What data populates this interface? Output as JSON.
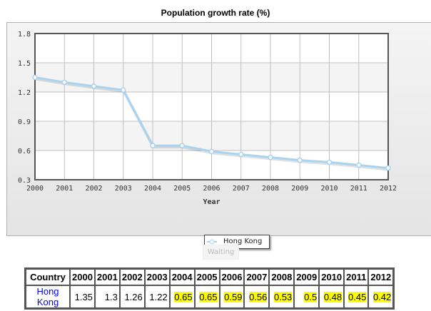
{
  "chart_data": {
    "type": "line",
    "title": "Population growth rate (%)",
    "xlabel": "Year",
    "ylabel": "",
    "categories": [
      "2000",
      "2001",
      "2002",
      "2003",
      "2004",
      "2005",
      "2006",
      "2007",
      "2008",
      "2009",
      "2010",
      "2011",
      "2012"
    ],
    "series": [
      {
        "name": "Hong Kong",
        "values": [
          1.35,
          1.3,
          1.26,
          1.22,
          0.65,
          0.65,
          0.59,
          0.56,
          0.53,
          0.5,
          0.48,
          0.45,
          0.42
        ]
      }
    ],
    "ylim": [
      0.3,
      1.8
    ],
    "yticks": [
      "0.3",
      "0.6",
      "0.9",
      "1.2",
      "1.5",
      "1.8"
    ],
    "grid": true,
    "legend": "bottom-center",
    "series_color": "#a8d4f2"
  },
  "waiting_label": "Waiting",
  "table": {
    "header": [
      "Country",
      "2000",
      "2001",
      "2002",
      "2003",
      "2004",
      "2005",
      "2006",
      "2007",
      "2008",
      "2009",
      "2010",
      "2011",
      "2012"
    ],
    "row": {
      "country": "Hong Kong",
      "values": [
        "1.35",
        "1.3",
        "1.26",
        "1.22",
        "0.65",
        "0.65",
        "0.59",
        "0.56",
        "0.53",
        "0.5",
        "0.48",
        "0.45",
        "0.42"
      ]
    },
    "highlighted_from_year": "2004",
    "highlight_color": "#ffff00"
  }
}
